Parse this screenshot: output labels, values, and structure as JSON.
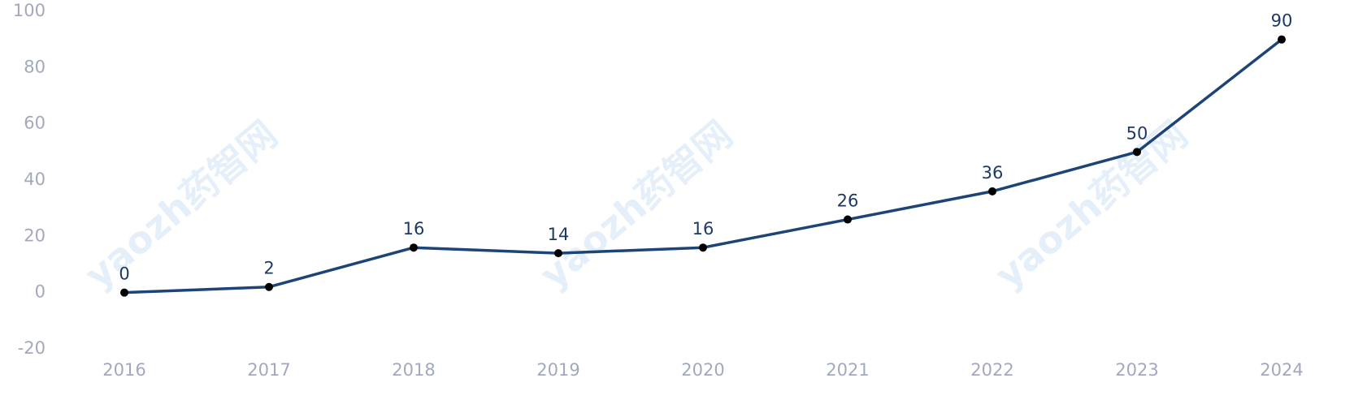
{
  "chart_data": {
    "type": "line",
    "categories": [
      "2016",
      "2017",
      "2018",
      "2019",
      "2020",
      "2021",
      "2022",
      "2023",
      "2024"
    ],
    "series": [
      {
        "color": "#1c4476",
        "values": [
          0,
          2,
          16,
          14,
          16,
          26,
          36,
          50,
          90
        ]
      }
    ],
    "ylim": [
      -20,
      100
    ],
    "yticks": [
      -20,
      0,
      20,
      40,
      60,
      80,
      100
    ],
    "grid": false,
    "watermark": "yaozh药智网"
  }
}
